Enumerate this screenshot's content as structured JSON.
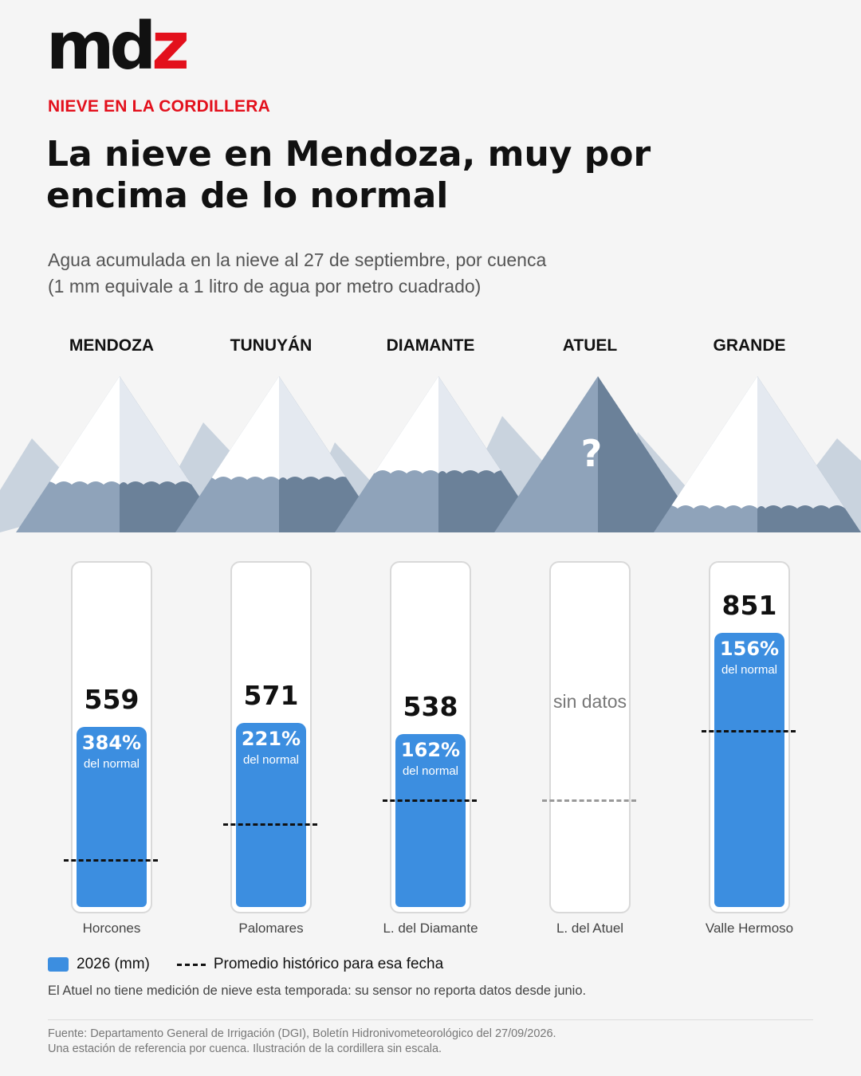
{
  "brand": {
    "logo_text_main": "md",
    "logo_text_accent": "z",
    "accent_color": "#e3101c"
  },
  "header": {
    "kicker": "NIEVE EN LA CORDILLERA",
    "title": "La nieve en Mendoza, muy por encima de lo normal",
    "subtitle_line1": "Agua acumulada en la nieve al 27 de septiembre, por cuenca",
    "subtitle_line2": "(1 mm equivale a 1 litro de agua por metro cuadrado)"
  },
  "mountain_marks": {
    "unknown_symbol": "?"
  },
  "chart_data": {
    "type": "bar",
    "unit": "mm",
    "ylim": [
      0,
      900
    ],
    "categories": [
      "MENDOZA",
      "TUNUYÁN",
      "DIAMANTE",
      "ATUEL",
      "GRANDE"
    ],
    "stations": [
      "Horcones",
      "Palomares",
      "L. del Diamante",
      "L. del Atuel",
      "Valle Hermoso"
    ],
    "series": [
      {
        "name": "2026 (mm)",
        "values": [
          559,
          571,
          538,
          null,
          851
        ]
      },
      {
        "name": "Promedio histórico para esa fecha",
        "values": [
          146,
          258,
          332,
          null,
          546
        ]
      }
    ],
    "percent_of_normal": [
      "384%",
      "221%",
      "162%",
      null,
      "156%"
    ],
    "percent_sub_label": "del normal",
    "value_labels": [
      "559",
      "571",
      "538",
      null,
      "851"
    ],
    "no_data_label": "sin datos",
    "no_data_average_level": 332,
    "bar_color": "#3c8ee0",
    "legend_position": "bottom"
  },
  "legend": {
    "bar_label": "2026 (mm)",
    "line_label": "Promedio histórico para esa fecha"
  },
  "note": "El Atuel no tiene medición de nieve esta temporada: su sensor no reporta datos desde junio.",
  "source_line1": "Fuente: Departamento General de Irrigación (DGI), Boletín Hidronivometeorológico del 27/09/2026.",
  "source_line2": "Una estación de referencia por cuenca. Ilustración de la cordillera sin escala."
}
